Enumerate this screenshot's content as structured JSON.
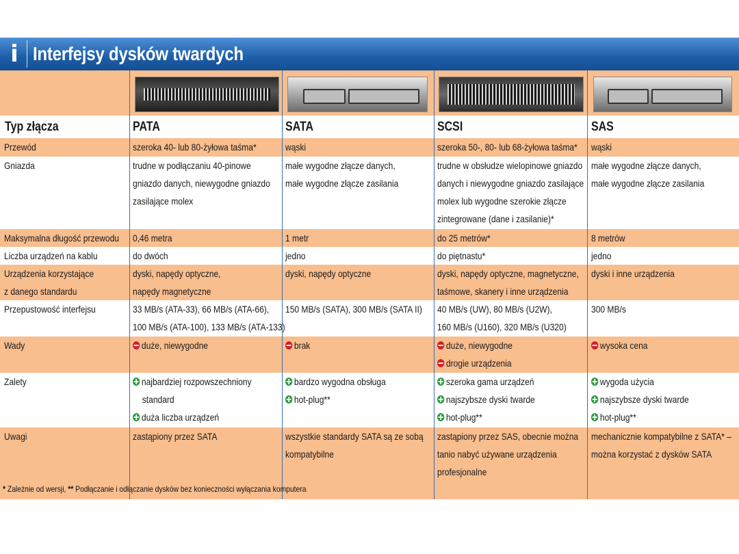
{
  "banner": {
    "icon": "i",
    "title": "Interfejsy dysków twardych",
    "color": "#1c5ea8"
  },
  "header": {
    "label": "Typ złącza",
    "columns": [
      "PATA",
      "SATA",
      "SCSI",
      "SAS"
    ]
  },
  "connectors": [
    {
      "name": "PATA",
      "picture": "pata-connector"
    },
    {
      "name": "SATA",
      "picture": "sata-connector"
    },
    {
      "name": "SCSI",
      "picture": "scsi-connector"
    },
    {
      "name": "SAS",
      "picture": "sas-connector"
    }
  ],
  "rows": [
    {
      "label": "Przewód",
      "cells": [
        [
          "szeroka 40- lub 80-żyłowa taśma*"
        ],
        [
          "wąski"
        ],
        [
          "szeroka 50-, 80- lub 68-żyłowa taśma*"
        ],
        [
          "wąski"
        ]
      ]
    },
    {
      "label": "Gniazda",
      "cells": [
        [
          "trudne w podłączaniu 40-pinowe",
          "gniazdo danych, niewygodne gniazdo",
          "zasilające molex"
        ],
        [
          "małe wygodne złącze danych,",
          "małe wygodne złącze zasilania"
        ],
        [
          "trudne w obsłudze wielopinowe gniazdo",
          "danych i niewygodne gniazdo zasilające",
          "molex lub wygodne szerokie złącze",
          "zintegrowane (dane i zasilanie)*"
        ],
        [
          "małe wygodne złącze danych,",
          "małe wygodne złącze zasilania"
        ]
      ]
    },
    {
      "label": "Maksymalna długość przewodu",
      "cells": [
        [
          "0,46 metra"
        ],
        [
          "1 metr"
        ],
        [
          "do 25 metrów*"
        ],
        [
          "8 metrów"
        ]
      ]
    },
    {
      "label": "Liczba urządzeń na kablu",
      "cells": [
        [
          "do dwóch"
        ],
        [
          "jedno"
        ],
        [
          "do piętnastu*"
        ],
        [
          "jedno"
        ]
      ]
    },
    {
      "label_lines": [
        "Urządzenia korzystające",
        "z danego standardu"
      ],
      "cells": [
        [
          "dyski, napędy optyczne,",
          "napędy magnetyczne"
        ],
        [
          "dyski, napędy optyczne"
        ],
        [
          "dyski, napędy optyczne, magnetyczne,",
          "taśmowe, skanery i inne urządzenia"
        ],
        [
          "dyski i inne urządzenia"
        ]
      ]
    },
    {
      "label": "Przepustowość interfejsu",
      "cells": [
        [
          "33 MB/s (ATA-33), 66 MB/s (ATA-66),",
          "100 MB/s (ATA-100), 133 MB/s (ATA-133)"
        ],
        [
          "150 MB/s (SATA), 300 MB/s (SATA II)"
        ],
        [
          "40 MB/s (UW), 80 MB/s (U2W),",
          "160 MB/s (U160), 320 MB/s (U320)"
        ],
        [
          "300 MB/s"
        ]
      ]
    },
    {
      "label": "Wady",
      "cells": [
        [
          "duże, niewygodne"
        ],
        [
          "brak"
        ],
        [
          "duże, niewygodne",
          "drogie urządzenia"
        ],
        [
          "wysoka cena"
        ]
      ]
    },
    {
      "label": "Zalety",
      "cells": [
        [
          "najbardziej rozpowszechniony",
          "standard",
          "duża liczba urządzeń"
        ],
        [
          "bardzo wygodna obsługa",
          "hot-plug**"
        ],
        [
          "szeroka gama urządzeń",
          "najszybsze dyski twarde",
          "hot-plug**"
        ],
        [
          "wygoda użycia",
          "najszybsze dyski twarde",
          "hot-plug**"
        ]
      ]
    },
    {
      "label": "Uwagi",
      "cells": [
        [
          "zastąpiony przez SATA"
        ],
        [
          "wszystkie standardy SATA są ze sobą",
          "kompatybilne"
        ],
        [
          "zastąpiony przez SAS, obecnie można",
          "tanio nabyć używane urządzenia",
          "profesjonalne"
        ],
        [
          "mechanicznie kompatybilne z SATA* –",
          "można korzystać z dysków SATA"
        ]
      ]
    }
  ],
  "markers": {
    "minus": "minus-circle-icon",
    "plus": "plus-circle-icon",
    "minus_color": "#d4202a",
    "plus_color": "#2a9a3c"
  },
  "footnote": {
    "mark1": "*",
    "text1": "Zależnie od wersji, ",
    "mark2": "**",
    "text2": "Podłączanie i odłączanie dysków bez konieczności wyłączania komputera"
  },
  "colors": {
    "band": "#f8be8e",
    "lines": "#3a6fb0",
    "text": "#1a1a1a"
  }
}
